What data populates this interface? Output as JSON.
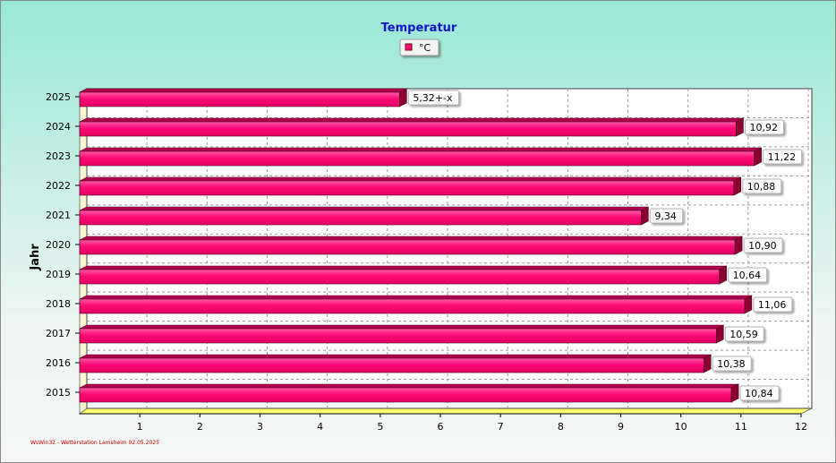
{
  "chart_data": {
    "type": "bar",
    "orientation": "horizontal",
    "title": "Temperatur",
    "ylabel": "Jahr",
    "xlabel": "",
    "categories": [
      "2025",
      "2024",
      "2023",
      "2022",
      "2021",
      "2020",
      "2019",
      "2018",
      "2017",
      "2016",
      "2015"
    ],
    "series": [
      {
        "name": "°C",
        "color": "#ff0a78",
        "values": [
          5.32,
          10.92,
          11.22,
          10.88,
          9.34,
          10.9,
          10.64,
          11.06,
          10.59,
          10.38,
          10.84
        ],
        "labels": [
          "5,32+-x",
          "10,92",
          "11,22",
          "10,88",
          "9,34",
          "10,90",
          "10,64",
          "11,06",
          "10,59",
          "10,38",
          "10,84"
        ]
      }
    ],
    "xlim": [
      0,
      12
    ],
    "xticks": [
      "1",
      "2",
      "3",
      "4",
      "5",
      "6",
      "7",
      "8",
      "9",
      "10",
      "11",
      "12"
    ],
    "grid": true,
    "legend_position": "top-center"
  },
  "footer": "WsWin32 - Wetterstation Lamsheim 02.05.2025"
}
